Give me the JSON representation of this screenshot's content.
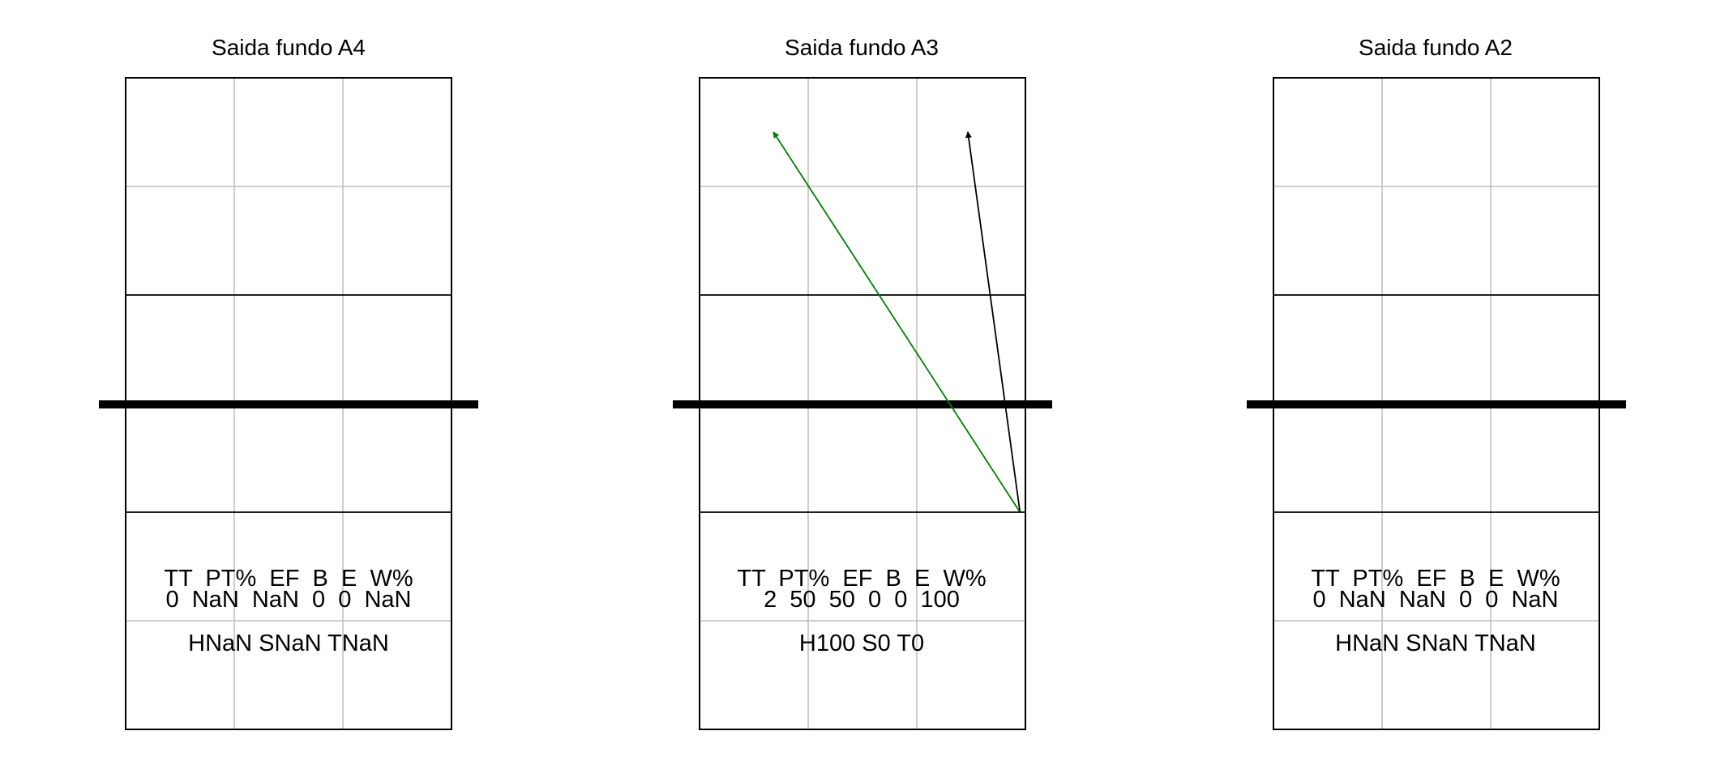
{
  "panels": [
    {
      "title": "Saida fundo A4",
      "stats_header": "TT  PT%  EF  B  E  W%",
      "stats_values": "0  NaN  NaN  0  0  NaN",
      "summary": "HNaN SNaN TNaN",
      "arrows": []
    },
    {
      "title": "Saida fundo A3",
      "stats_header": "TT  PT%  EF  B  E  W%",
      "stats_values": "2  50  50  0  0  100",
      "summary": "H100 S0 T0",
      "arrows": [
        {
          "color": "#008000",
          "from": [
            2.95,
            2.0
          ],
          "to": [
            0.68,
            5.5
          ]
        },
        {
          "color": "#000000",
          "from": [
            2.95,
            2.0
          ],
          "to": [
            2.47,
            5.5
          ]
        }
      ]
    },
    {
      "title": "Saida fundo A2",
      "stats_header": "TT  PT%  EF  B  E  W%",
      "stats_values": "0  NaN  NaN  0  0  NaN",
      "summary": "HNaN SNaN TNaN",
      "arrows": []
    }
  ],
  "colors": {
    "court_line": "#000000",
    "grid_line": "#bebebe",
    "net_line": "#000000"
  }
}
